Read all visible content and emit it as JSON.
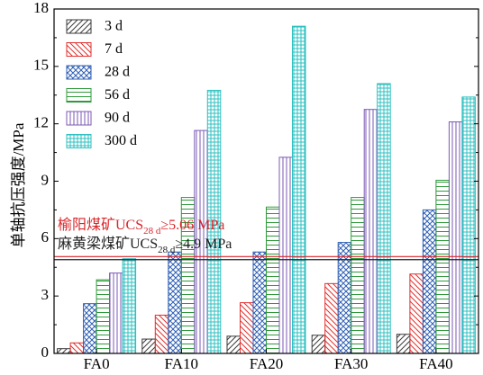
{
  "chart_data": {
    "type": "bar",
    "title": "",
    "xlabel": "",
    "ylabel": "单轴抗压强度/MPa",
    "ylim": [
      0,
      18
    ],
    "yticks": [
      "0",
      "3",
      "6",
      "9",
      "12",
      "15",
      "18"
    ],
    "categories": [
      "FA0",
      "FA10",
      "FA20",
      "FA30",
      "FA40"
    ],
    "grid": false,
    "legend_position": "top-left",
    "series": [
      {
        "name": "3 d",
        "color": "#3a3a3a",
        "pattern": "diag-left",
        "values": [
          0.25,
          0.75,
          0.9,
          0.95,
          1.0
        ]
      },
      {
        "name": "7 d",
        "color": "#e0312f",
        "pattern": "diag-right",
        "values": [
          0.55,
          2.0,
          2.65,
          3.65,
          4.15
        ]
      },
      {
        "name": "28 d",
        "color": "#2f5fb4",
        "pattern": "crosshatch",
        "values": [
          2.6,
          5.3,
          5.3,
          5.8,
          7.5
        ]
      },
      {
        "name": "56 d",
        "color": "#2f9a3a",
        "pattern": "horizontal",
        "values": [
          3.85,
          8.15,
          7.65,
          8.15,
          9.05
        ]
      },
      {
        "name": "90 d",
        "color": "#7b58b5",
        "pattern": "vertical",
        "values": [
          4.2,
          11.65,
          10.25,
          12.75,
          12.1
        ]
      },
      {
        "name": "300 d",
        "color": "#2ec0c0",
        "pattern": "grid",
        "values": [
          4.95,
          13.75,
          17.1,
          14.1,
          13.4
        ]
      }
    ],
    "reference_lines": [
      {
        "value": 5.06,
        "color": "#d9262b",
        "label_prefix": "榆阳煤矿UCS",
        "label_sub": "28 d",
        "label_suffix": "≥5.06 MPa"
      },
      {
        "value": 4.9,
        "color": "#222222",
        "label_prefix": "麻黄梁煤矿UCS",
        "label_sub": "28 d",
        "label_suffix": "≥4.9 MPa"
      }
    ]
  }
}
